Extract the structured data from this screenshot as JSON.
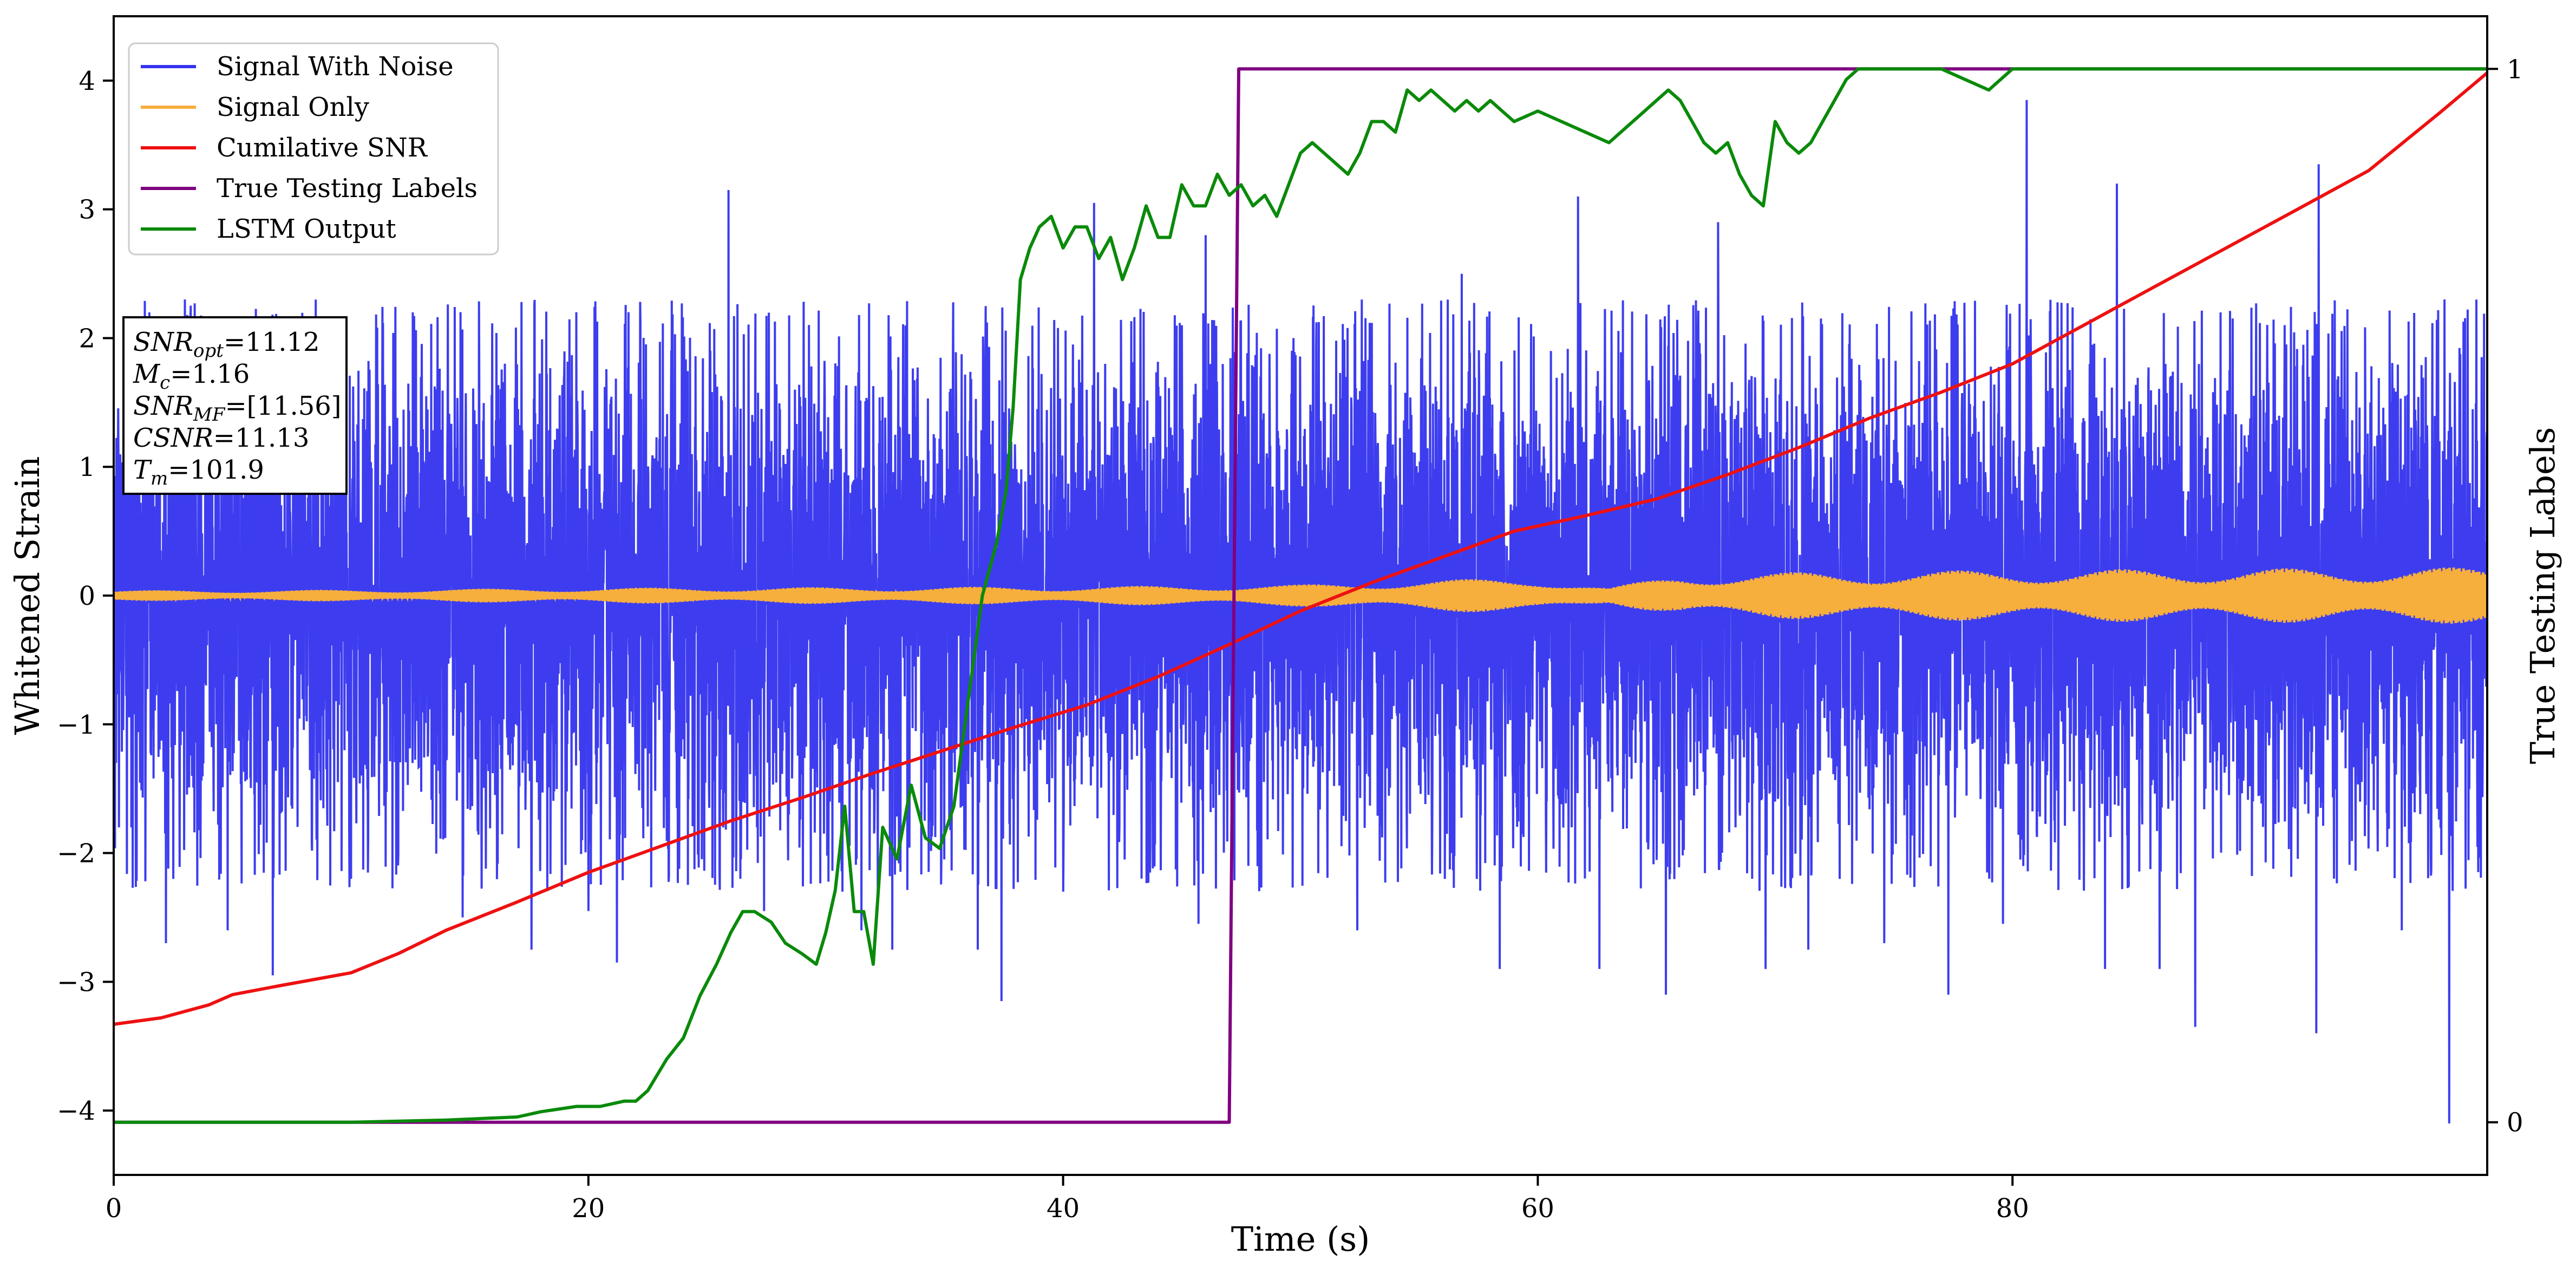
{
  "chart_data": {
    "type": "line",
    "title": "",
    "xlabel": "Time (s)",
    "ylabel": "Whitened Strain",
    "y2label": "True Testing Labels",
    "xlim": [
      0,
      100
    ],
    "ylim": [
      -4.5,
      4.5
    ],
    "y2lim": [
      -0.05,
      1.05
    ],
    "xticks": [
      0,
      20,
      40,
      60,
      80
    ],
    "yticks": [
      -4,
      -3,
      -2,
      -1,
      0,
      1,
      2,
      3,
      4
    ],
    "y2ticks": [
      0,
      1
    ],
    "grid": false,
    "legend_position": "top-left",
    "info_box": [
      {
        "main": "SNR",
        "sub": "opt",
        "value": "=11.12"
      },
      {
        "main": "M",
        "sub": "c",
        "value": "=1.16"
      },
      {
        "main": "SNR",
        "sub": "MF",
        "value": "=[11.56]"
      },
      {
        "main": "CSNR",
        "sub": "",
        "value": "=11.13"
      },
      {
        "main": "T",
        "sub": "m",
        "value": "=101.9"
      }
    ],
    "series": [
      {
        "name": "Signal With Noise",
        "color": "#3333ee",
        "axis": "left",
        "kind": "noisy-strain",
        "approx_typical_amplitude": 1.3,
        "peaks": [
          [
            1.5,
            2.2
          ],
          [
            2.2,
            -2.7
          ],
          [
            3.0,
            2.3
          ],
          [
            4.8,
            -2.6
          ],
          [
            6.7,
            -2.95
          ],
          [
            10.0,
            -2.2
          ],
          [
            12.6,
            2.2
          ],
          [
            14.7,
            -2.5
          ],
          [
            17.6,
            -2.75
          ],
          [
            20.0,
            -2.45
          ],
          [
            21.2,
            -2.85
          ],
          [
            25.9,
            3.15
          ],
          [
            26.4,
            -2.2
          ],
          [
            27.4,
            -2.45
          ],
          [
            30.7,
            -2.3
          ],
          [
            31.5,
            -2.6
          ],
          [
            32.8,
            -2.75
          ],
          [
            36.4,
            -2.75
          ],
          [
            37.4,
            -3.15
          ],
          [
            40.0,
            -2.3
          ],
          [
            41.3,
            3.05
          ],
          [
            45.0,
            2.1
          ],
          [
            45.7,
            -2.55
          ],
          [
            46.0,
            2.8
          ],
          [
            49.7,
            2.0
          ],
          [
            52.4,
            -2.6
          ],
          [
            56.8,
            2.5
          ],
          [
            58.4,
            -2.9
          ],
          [
            61.7,
            3.1
          ],
          [
            62.6,
            -2.9
          ],
          [
            65.4,
            -3.1
          ],
          [
            67.6,
            2.9
          ],
          [
            69.6,
            -2.9
          ],
          [
            71.4,
            -2.75
          ],
          [
            74.6,
            -2.7
          ],
          [
            77.3,
            -3.1
          ],
          [
            79.6,
            -2.55
          ],
          [
            80.6,
            3.85
          ],
          [
            83.9,
            -2.9
          ],
          [
            84.4,
            3.2
          ],
          [
            86.2,
            -2.9
          ],
          [
            87.7,
            -3.35
          ],
          [
            92.8,
            -3.4
          ],
          [
            92.9,
            3.35
          ],
          [
            96.4,
            -2.6
          ],
          [
            98.4,
            -4.1
          ],
          [
            98.2,
            2.3
          ]
        ]
      },
      {
        "name": "Signal Only",
        "color": "#f6ae3d",
        "axis": "left",
        "kind": "chirp",
        "envelope": [
          [
            0,
            0.04
          ],
          [
            10,
            0.045
          ],
          [
            20,
            0.06
          ],
          [
            30,
            0.065
          ],
          [
            40,
            0.07
          ],
          [
            50,
            0.085
          ],
          [
            55,
            0.12
          ],
          [
            60,
            0.14
          ],
          [
            63,
            0.06
          ],
          [
            66,
            0.17
          ],
          [
            70,
            0.18
          ],
          [
            80,
            0.2
          ],
          [
            90,
            0.21
          ],
          [
            100,
            0.22
          ]
        ]
      },
      {
        "name": "Cumilative SNR",
        "color": "#ee1111",
        "axis": "left",
        "x": [
          0,
          2,
          4,
          5,
          7,
          10,
          12,
          14,
          17,
          20,
          23,
          26,
          29,
          32,
          35,
          38,
          41,
          44,
          47,
          50,
          53,
          56,
          59,
          62,
          65,
          68,
          71,
          74,
          77,
          80,
          83,
          86,
          89,
          92,
          95,
          98,
          100
        ],
        "y": [
          -3.33,
          -3.28,
          -3.18,
          -3.1,
          -3.03,
          -2.93,
          -2.78,
          -2.6,
          -2.38,
          -2.15,
          -1.95,
          -1.75,
          -1.57,
          -1.38,
          -1.2,
          -1.02,
          -0.85,
          -0.63,
          -0.38,
          -0.12,
          0.1,
          0.3,
          0.5,
          0.62,
          0.75,
          0.94,
          1.15,
          1.38,
          1.58,
          1.8,
          2.1,
          2.4,
          2.7,
          3.0,
          3.3,
          3.75,
          4.06
        ]
      },
      {
        "name": "True Testing Labels",
        "color": "#800080",
        "axis": "right",
        "x": [
          0,
          47.0,
          47.4,
          100
        ],
        "y": [
          0,
          0,
          1,
          1
        ]
      },
      {
        "name": "LSTM Output",
        "color": "#0a8a0a",
        "axis": "right",
        "x": [
          0,
          10,
          14,
          17,
          18,
          19.5,
          20.5,
          21.5,
          22,
          22.5,
          23.3,
          24,
          24.7,
          25.4,
          26,
          26.5,
          27,
          27.7,
          28.3,
          29,
          29.6,
          30,
          30.4,
          30.8,
          31.2,
          31.6,
          32,
          32.4,
          33,
          33.6,
          34.2,
          34.8,
          35.4,
          36,
          36.6,
          37.2,
          37.6,
          37.9,
          38.2,
          38.6,
          39,
          39.5,
          40,
          40.5,
          41,
          41.5,
          42,
          42.5,
          43,
          43.5,
          44,
          44.5,
          45,
          45.5,
          46,
          46.5,
          47,
          47.5,
          48,
          48.5,
          49,
          49.5,
          50,
          50.5,
          51,
          51.5,
          52,
          52.5,
          53,
          53.5,
          54,
          54.5,
          55,
          55.5,
          56,
          56.5,
          57,
          57.5,
          58,
          58.5,
          59,
          60,
          61,
          62,
          63,
          64,
          64.5,
          65,
          65.5,
          66,
          66.5,
          67,
          67.5,
          68,
          68.5,
          69,
          69.5,
          70,
          70.5,
          71,
          71.5,
          72,
          72.5,
          73,
          73.5,
          74,
          75,
          76,
          77,
          78,
          79,
          80,
          81,
          82,
          83,
          84,
          85,
          90,
          95,
          100
        ],
        "y": [
          0,
          0,
          0.002,
          0.005,
          0.01,
          0.015,
          0.015,
          0.02,
          0.02,
          0.03,
          0.06,
          0.08,
          0.12,
          0.15,
          0.18,
          0.2,
          0.2,
          0.19,
          0.17,
          0.16,
          0.15,
          0.18,
          0.22,
          0.3,
          0.2,
          0.2,
          0.15,
          0.28,
          0.25,
          0.32,
          0.27,
          0.26,
          0.3,
          0.4,
          0.5,
          0.55,
          0.6,
          0.68,
          0.8,
          0.83,
          0.85,
          0.86,
          0.83,
          0.85,
          0.85,
          0.82,
          0.84,
          0.8,
          0.83,
          0.87,
          0.84,
          0.84,
          0.89,
          0.87,
          0.87,
          0.9,
          0.88,
          0.89,
          0.87,
          0.88,
          0.86,
          0.89,
          0.92,
          0.93,
          0.92,
          0.91,
          0.9,
          0.92,
          0.95,
          0.95,
          0.94,
          0.98,
          0.97,
          0.98,
          0.97,
          0.96,
          0.97,
          0.96,
          0.97,
          0.96,
          0.95,
          0.96,
          0.95,
          0.94,
          0.93,
          0.95,
          0.96,
          0.97,
          0.98,
          0.97,
          0.95,
          0.93,
          0.92,
          0.93,
          0.9,
          0.88,
          0.87,
          0.95,
          0.93,
          0.92,
          0.93,
          0.95,
          0.97,
          0.99,
          1.0,
          1.0,
          1.0,
          1.0,
          1.0,
          0.99,
          0.98,
          1.0,
          1.0,
          1.0,
          1.0,
          1.0,
          1.0,
          1.0,
          1.0,
          1.0
        ]
      }
    ]
  }
}
